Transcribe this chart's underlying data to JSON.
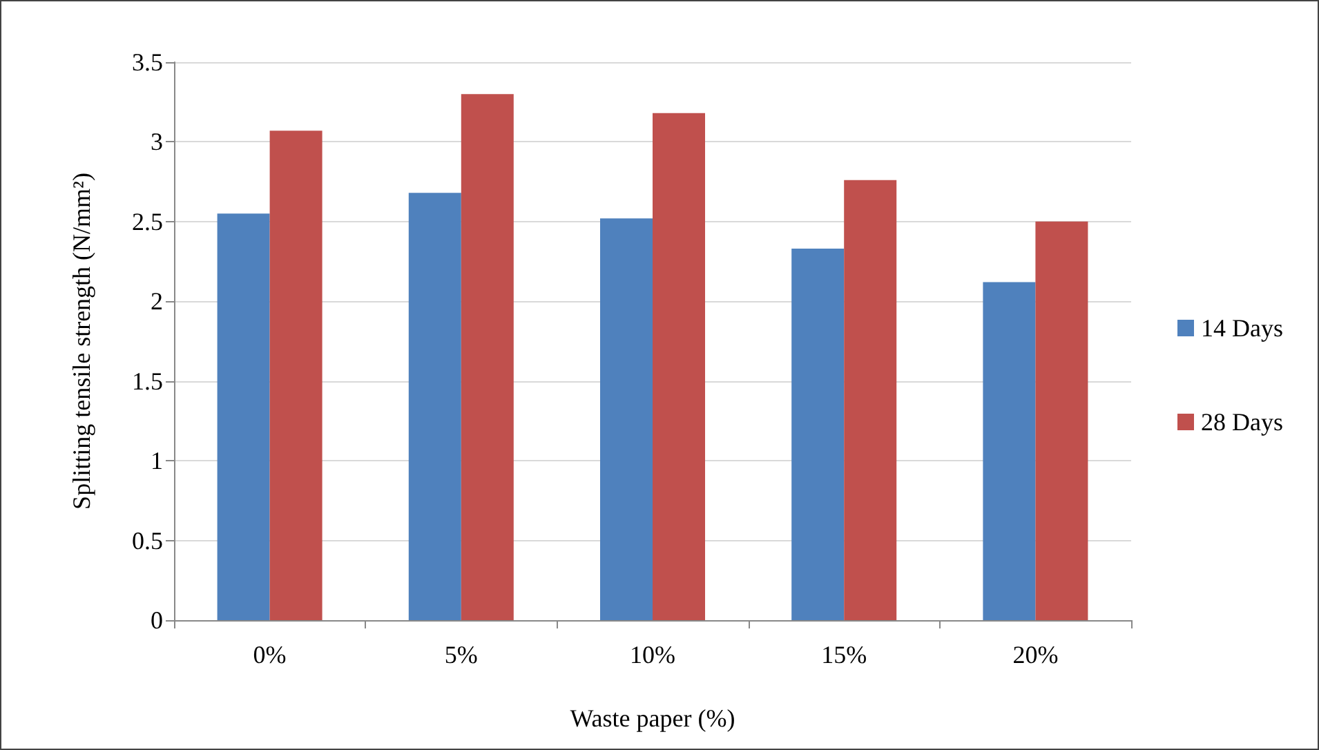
{
  "chart_data": {
    "type": "bar",
    "xlabel": "Waste paper (%)",
    "ylabel": "Splitting tensile strength (N/mm²)",
    "categories": [
      "0%",
      "5%",
      "10%",
      "15%",
      "20%"
    ],
    "series": [
      {
        "name": "14 Days",
        "color": "#4f81bd",
        "values": [
          2.55,
          2.68,
          2.52,
          2.33,
          2.12
        ]
      },
      {
        "name": "28 Days",
        "color": "#c0504d",
        "values": [
          3.07,
          3.3,
          3.18,
          2.76,
          2.5
        ]
      }
    ],
    "ylim": [
      0,
      3.5
    ],
    "yticks": [
      0,
      0.5,
      1,
      1.5,
      2,
      2.5,
      3,
      3.5
    ],
    "grid": "y",
    "legend": "right"
  }
}
